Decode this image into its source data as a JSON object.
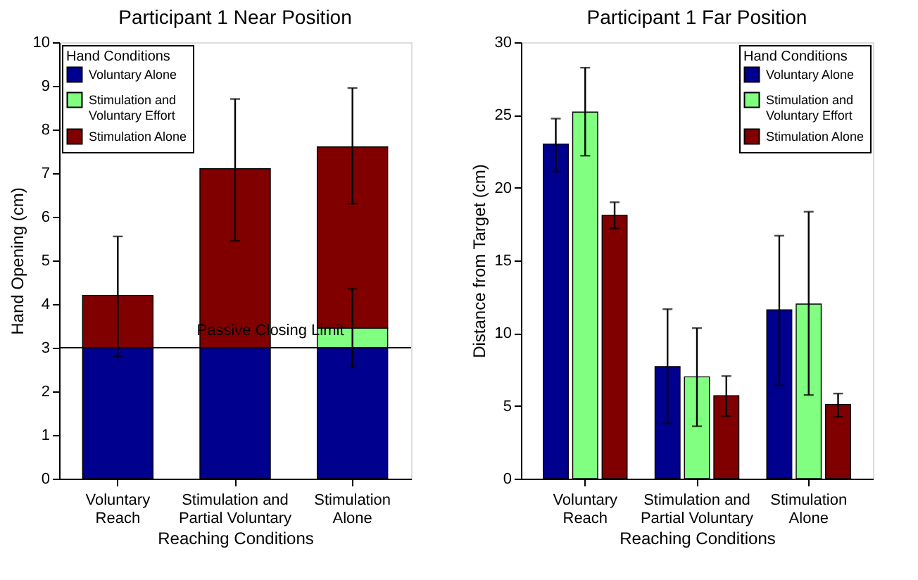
{
  "chart_data": [
    {
      "type": "bar",
      "title": "Participant 1 Near Position",
      "xlabel": "Reaching Conditions",
      "ylabel": "Hand Opening (cm)",
      "legend_title": "Hand Conditions",
      "legend": "top left",
      "stacked": true,
      "categories": [
        "Voluntary\nReach",
        "Stimulation and\nPartial Voluntary",
        "Stimulation\nAlone"
      ],
      "ylim": [
        0,
        10
      ],
      "yticks": [
        0,
        1,
        2,
        3,
        4,
        5,
        6,
        7,
        8,
        9,
        10
      ],
      "series": [
        {
          "name": "Voluntary Alone",
          "color": "#00008f",
          "values": [
            3,
            3,
            3
          ]
        },
        {
          "name": "Stimulation and\nVoluntary Effort",
          "color": "#80ff80",
          "values": [
            null,
            null,
            0.45
          ],
          "errors": [
            null,
            null,
            [
              2.55,
              4.35
            ]
          ]
        },
        {
          "name": "Stimulation Alone",
          "color": "#800000",
          "values": [
            1.2,
            4.1,
            4.15
          ],
          "errors": [
            [
              2.8,
              5.55
            ],
            [
              5.45,
              8.7
            ],
            [
              6.3,
              8.95
            ]
          ]
        }
      ],
      "ref_lines": [
        {
          "axis": "y",
          "value": 3,
          "label": "Passive Closing Limit"
        }
      ]
    },
    {
      "type": "bar",
      "title": "Participant 1 Far Position",
      "xlabel": "Reaching Conditions",
      "ylabel": "Distance from Target (cm)",
      "legend_title": "Hand Conditions",
      "legend": "top right",
      "categories": [
        "Voluntary\nReach",
        "Stimulation and\nPartial Voluntary",
        "Stimulation\nAlone"
      ],
      "ylim": [
        0,
        30
      ],
      "yticks": [
        0,
        5,
        10,
        15,
        20,
        25,
        30
      ],
      "series": [
        {
          "name": "Voluntary Alone",
          "color": "#00008f",
          "values": [
            23,
            7.7,
            11.6
          ],
          "errors": [
            [
              21.1,
              24.75
            ],
            [
              3.8,
              11.65
            ],
            [
              6.4,
              16.7
            ]
          ]
        },
        {
          "name": "Stimulation and\nVoluntary Effort",
          "color": "#80ff80",
          "values": [
            25.2,
            7.0,
            12.0
          ],
          "errors": [
            [
              22.2,
              28.25
            ],
            [
              3.6,
              10.35
            ],
            [
              5.75,
              18.35
            ]
          ]
        },
        {
          "name": "Stimulation Alone",
          "color": "#800000",
          "values": [
            18.1,
            5.7,
            5.1
          ],
          "errors": [
            [
              17.2,
              19.0
            ],
            [
              4.3,
              7.05
            ],
            [
              4.25,
              5.85
            ]
          ]
        }
      ]
    }
  ]
}
